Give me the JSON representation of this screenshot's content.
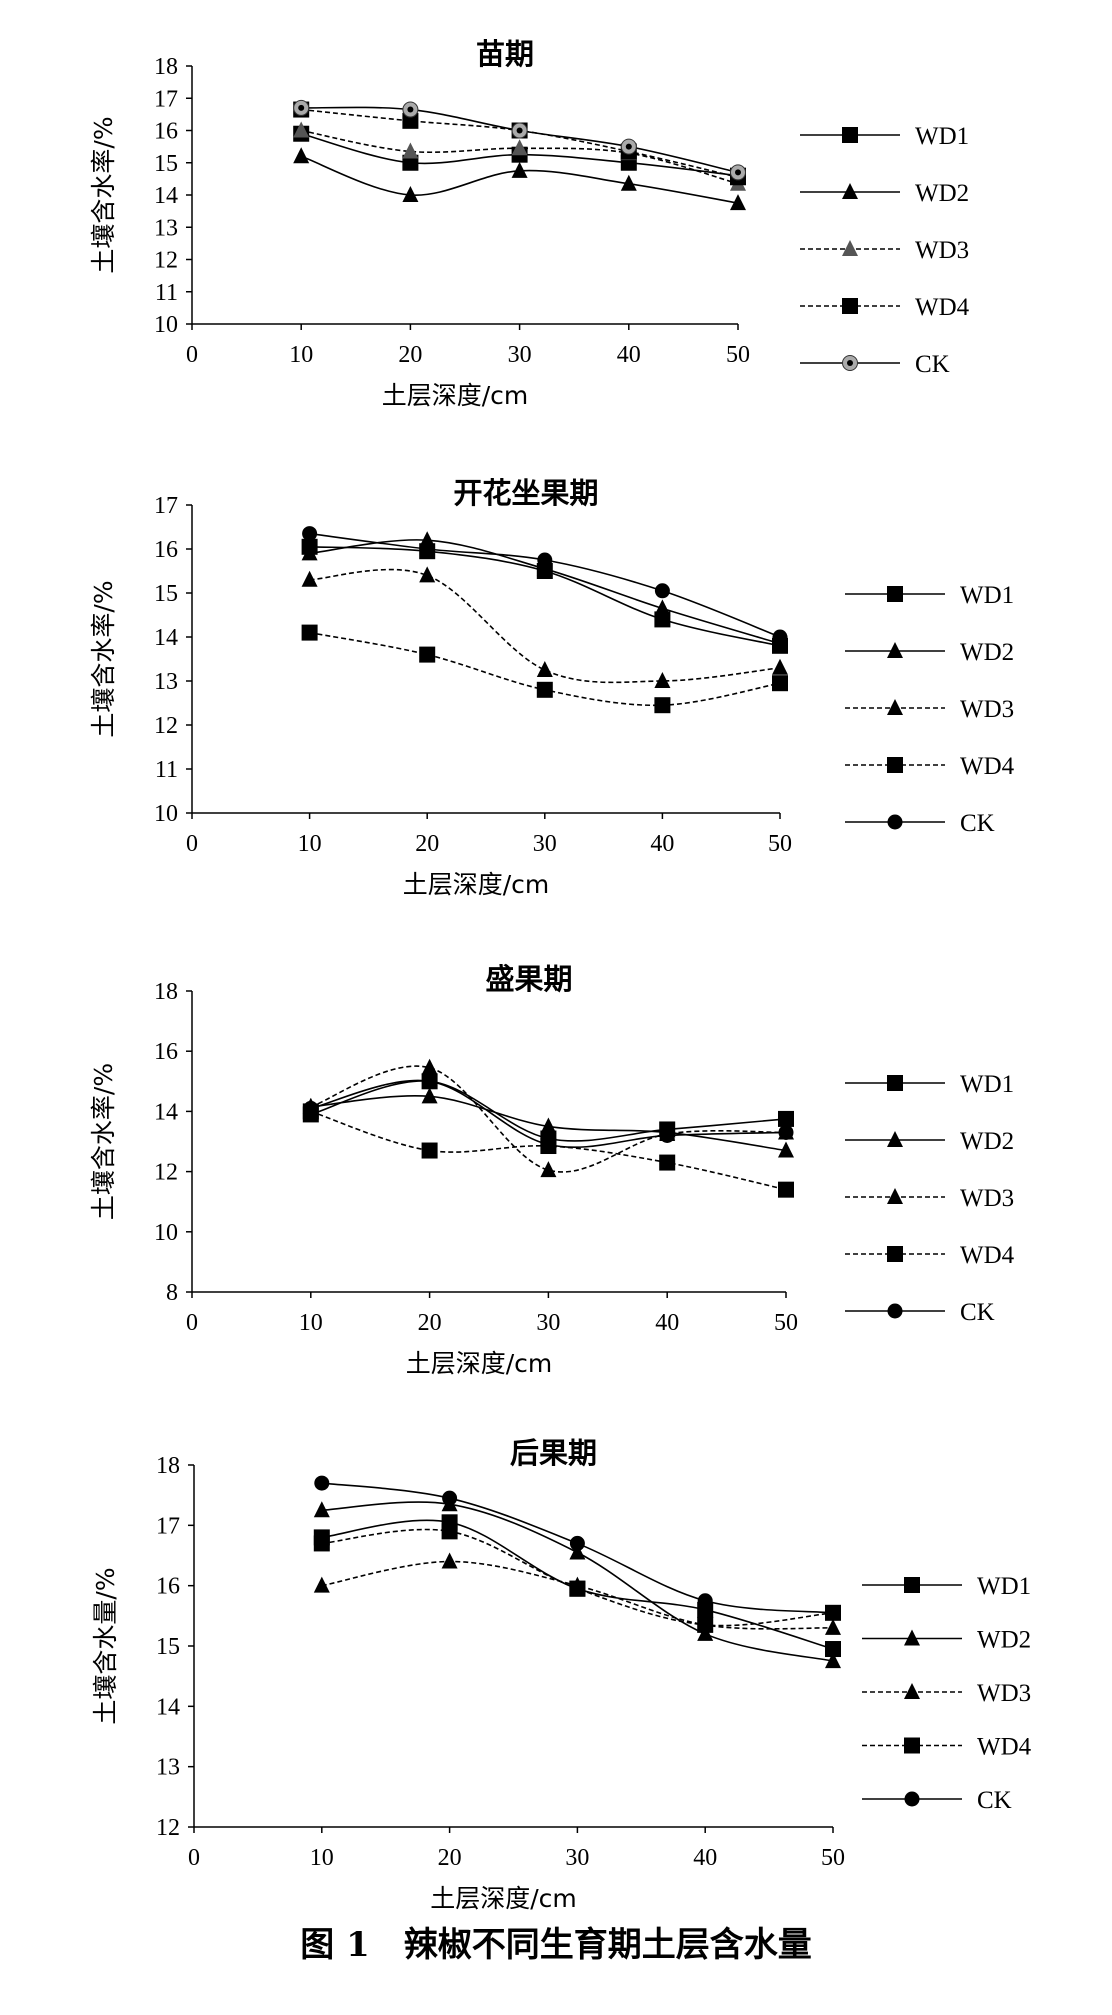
{
  "figure_caption": "图 1　辣椒不同生育期土层含水量",
  "chart_data": [
    {
      "type": "line",
      "title": "苗期",
      "xlabel": "土层深度/cm",
      "ylabel": "土壤含水率/%",
      "x": [
        10,
        20,
        30,
        40,
        50
      ],
      "xlim": [
        0,
        50
      ],
      "xticks": [
        "0",
        "10",
        "20",
        "30",
        "40",
        "50"
      ],
      "ylim": [
        10,
        18
      ],
      "yticks": [
        "10",
        "11",
        "12",
        "13",
        "14",
        "15",
        "16",
        "17",
        "18"
      ],
      "grid": false,
      "legend_position": "right",
      "series": [
        {
          "name": "WD1",
          "values": [
            15.9,
            15.0,
            15.25,
            15.0,
            14.6
          ],
          "marker": "square",
          "dash": "solid",
          "marker_color": "#000000"
        },
        {
          "name": "WD2",
          "values": [
            15.2,
            14.0,
            14.75,
            14.35,
            13.75
          ],
          "marker": "triangle",
          "dash": "solid",
          "marker_color": "#000000"
        },
        {
          "name": "WD3",
          "values": [
            16.0,
            15.35,
            15.45,
            15.3,
            14.35
          ],
          "marker": "triangle",
          "dash": "dashed",
          "marker_color": "#555555"
        },
        {
          "name": "WD4",
          "values": [
            16.65,
            16.3,
            16.0,
            15.35,
            14.55
          ],
          "marker": "square",
          "dash": "dashed",
          "marker_color": "#000000"
        },
        {
          "name": "CK",
          "values": [
            16.7,
            16.65,
            16.0,
            15.5,
            14.7
          ],
          "marker": "circle-dot",
          "dash": "solid",
          "marker_color": "#aaaaaa"
        }
      ]
    },
    {
      "type": "line",
      "title": "开花坐果期",
      "xlabel": "土层深度/cm",
      "ylabel": "土壤含水率/%",
      "x": [
        10,
        20,
        30,
        40,
        50
      ],
      "xlim": [
        0,
        50
      ],
      "xticks": [
        "0",
        "10",
        "20",
        "30",
        "40",
        "50"
      ],
      "ylim": [
        10,
        17
      ],
      "yticks": [
        "10",
        "11",
        "12",
        "13",
        "14",
        "15",
        "16",
        "17"
      ],
      "grid": false,
      "legend_position": "right",
      "series": [
        {
          "name": "WD1",
          "values": [
            16.05,
            15.95,
            15.5,
            14.4,
            13.8
          ],
          "marker": "square",
          "dash": "solid",
          "marker_color": "#000000"
        },
        {
          "name": "WD2",
          "values": [
            15.9,
            16.2,
            15.55,
            14.65,
            13.85
          ],
          "marker": "triangle",
          "dash": "solid",
          "marker_color": "#000000"
        },
        {
          "name": "WD3",
          "values": [
            15.3,
            15.4,
            13.25,
            13.0,
            13.3
          ],
          "marker": "triangle",
          "dash": "dashed",
          "marker_color": "#000000"
        },
        {
          "name": "WD4",
          "values": [
            14.1,
            13.6,
            12.8,
            12.45,
            12.95
          ],
          "marker": "square",
          "dash": "dashed",
          "marker_color": "#000000"
        },
        {
          "name": "CK",
          "values": [
            16.35,
            16.0,
            15.75,
            15.05,
            14.0
          ],
          "marker": "circle",
          "dash": "solid",
          "marker_color": "#000000"
        }
      ]
    },
    {
      "type": "line",
      "title": "盛果期",
      "xlabel": "土层深度/cm",
      "ylabel": "土壤含水率/%",
      "x": [
        10,
        20,
        30,
        40,
        50
      ],
      "xlim": [
        0,
        50
      ],
      "xticks": [
        "0",
        "10",
        "20",
        "30",
        "40",
        "50"
      ],
      "ylim": [
        8,
        18
      ],
      "yticks": [
        "8",
        "10",
        "12",
        "14",
        "16",
        "18"
      ],
      "grid": false,
      "legend_position": "right",
      "series": [
        {
          "name": "WD1",
          "values": [
            13.9,
            15.0,
            13.1,
            13.4,
            13.75
          ],
          "marker": "square",
          "dash": "solid",
          "marker_color": "#000000"
        },
        {
          "name": "WD2",
          "values": [
            14.15,
            14.5,
            13.5,
            13.3,
            12.7
          ],
          "marker": "triangle",
          "dash": "solid",
          "marker_color": "#000000"
        },
        {
          "name": "WD3",
          "values": [
            14.15,
            15.45,
            12.05,
            13.25,
            13.3
          ],
          "marker": "triangle",
          "dash": "dashed",
          "marker_color": "#000000"
        },
        {
          "name": "WD4",
          "values": [
            14.0,
            12.7,
            12.85,
            12.3,
            11.4
          ],
          "marker": "square",
          "dash": "dashed",
          "marker_color": "#000000"
        },
        {
          "name": "CK",
          "values": [
            14.1,
            15.0,
            12.9,
            13.2,
            13.3
          ],
          "marker": "circle",
          "dash": "solid",
          "marker_color": "#000000"
        }
      ]
    },
    {
      "type": "line",
      "title": "后果期",
      "xlabel": "土层深度/cm",
      "ylabel": "土壤含水量/%",
      "x": [
        10,
        20,
        30,
        40,
        50
      ],
      "xlim": [
        0,
        50
      ],
      "xticks": [
        "0",
        "10",
        "20",
        "30",
        "40",
        "50"
      ],
      "ylim": [
        12,
        18
      ],
      "yticks": [
        "12",
        "13",
        "14",
        "15",
        "16",
        "17",
        "18"
      ],
      "grid": false,
      "legend_position": "right",
      "series": [
        {
          "name": "WD1",
          "values": [
            16.8,
            17.05,
            15.95,
            15.6,
            14.95
          ],
          "marker": "square",
          "dash": "solid",
          "marker_color": "#000000"
        },
        {
          "name": "WD2",
          "values": [
            17.25,
            17.35,
            16.55,
            15.2,
            14.75
          ],
          "marker": "triangle",
          "dash": "solid",
          "marker_color": "#000000"
        },
        {
          "name": "WD3",
          "values": [
            16.0,
            16.4,
            16.0,
            15.35,
            15.3
          ],
          "marker": "triangle",
          "dash": "dashed",
          "marker_color": "#000000"
        },
        {
          "name": "WD4",
          "values": [
            16.7,
            16.9,
            15.95,
            15.35,
            15.55
          ],
          "marker": "square",
          "dash": "dashed",
          "marker_color": "#000000"
        },
        {
          "name": "CK",
          "values": [
            17.7,
            17.45,
            16.7,
            15.75,
            15.55
          ],
          "marker": "circle",
          "dash": "solid",
          "marker_color": "#000000"
        }
      ]
    }
  ]
}
